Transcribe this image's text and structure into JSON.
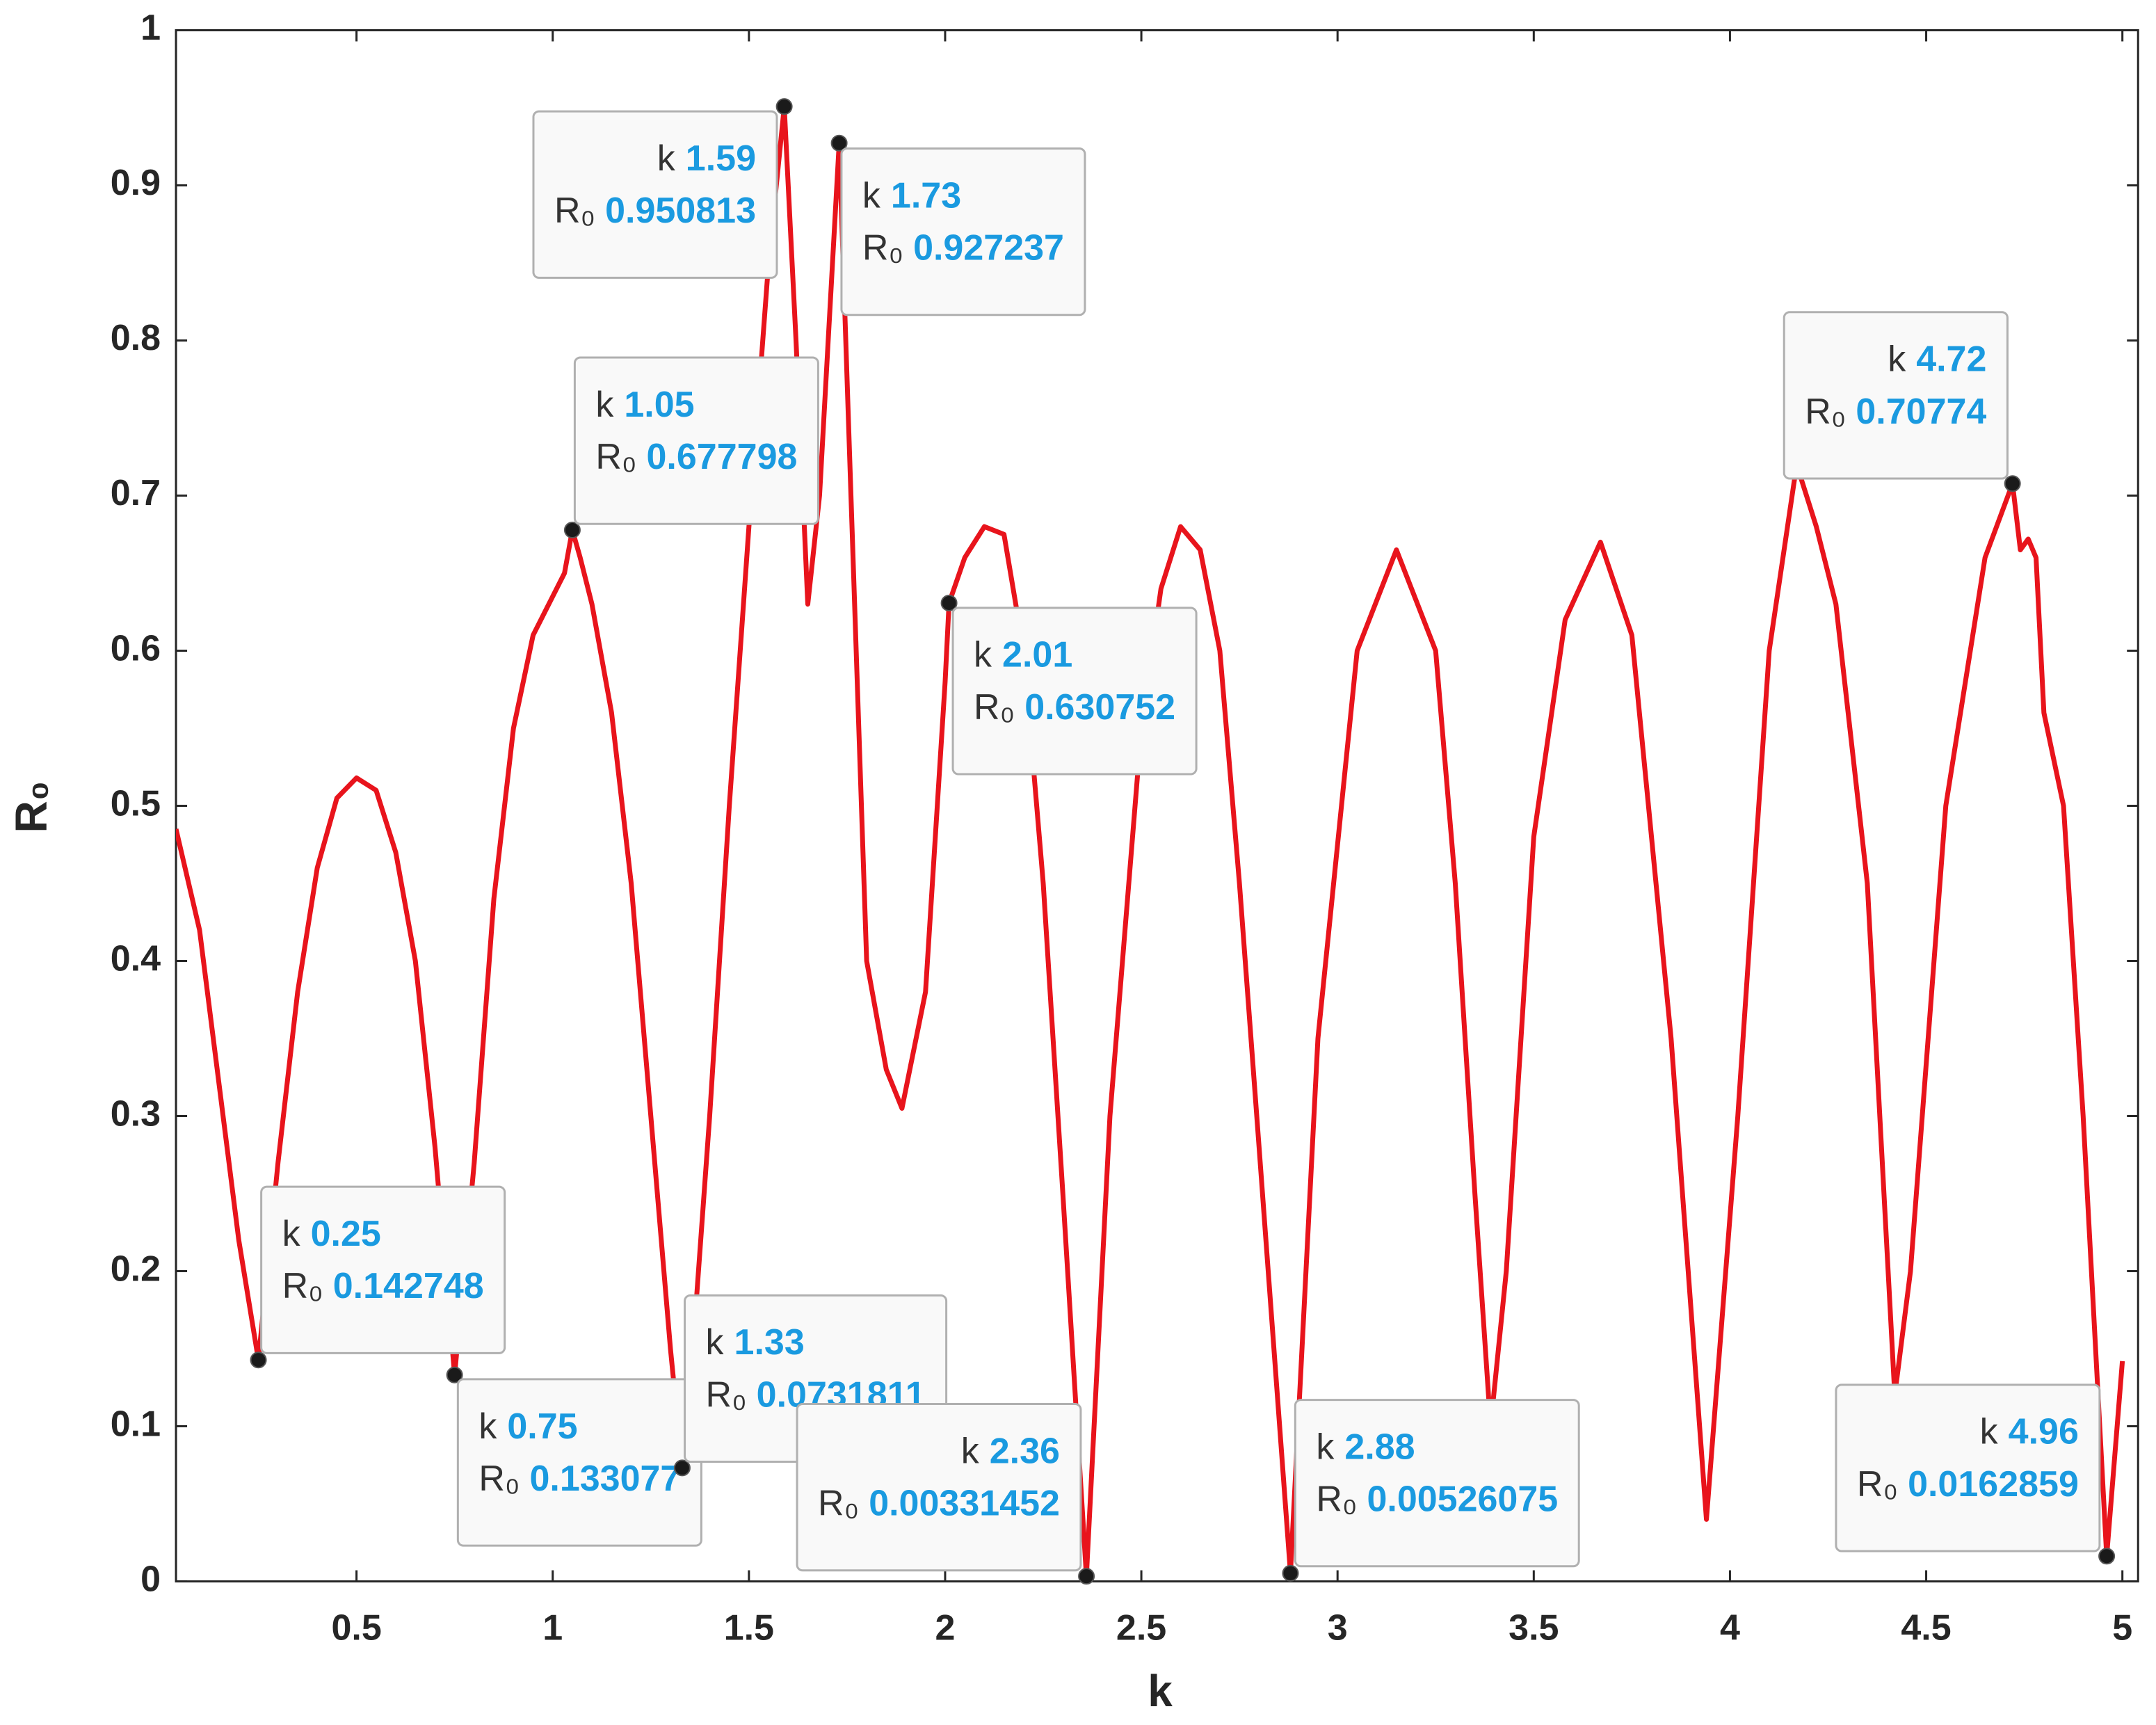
{
  "chart_data": {
    "type": "line",
    "xlabel": "k",
    "ylabel": "R₀",
    "xlim": [
      0.04,
      5.04
    ],
    "ylim": [
      0,
      1
    ],
    "xticks": [
      0.5,
      1,
      1.5,
      2,
      2.5,
      3,
      3.5,
      4,
      4.5,
      5
    ],
    "yticks": [
      0,
      0.1,
      0.2,
      0.3,
      0.4,
      0.5,
      0.6,
      0.7,
      0.8,
      0.9,
      1
    ],
    "color": "#e8141c",
    "x": [
      0.04,
      0.1,
      0.15,
      0.2,
      0.25,
      0.3,
      0.35,
      0.4,
      0.45,
      0.5,
      0.55,
      0.6,
      0.65,
      0.7,
      0.75,
      0.8,
      0.85,
      0.9,
      0.95,
      1.0,
      1.03,
      1.05,
      1.07,
      1.1,
      1.15,
      1.2,
      1.25,
      1.3,
      1.33,
      1.36,
      1.4,
      1.45,
      1.5,
      1.55,
      1.59,
      1.62,
      1.65,
      1.68,
      1.73,
      1.76,
      1.8,
      1.85,
      1.89,
      1.95,
      2.0,
      2.01,
      2.05,
      2.1,
      2.15,
      2.2,
      2.25,
      2.3,
      2.36,
      2.42,
      2.5,
      2.55,
      2.6,
      2.65,
      2.7,
      2.75,
      2.8,
      2.88,
      2.95,
      3.05,
      3.15,
      3.25,
      3.3,
      3.35,
      3.39,
      3.43,
      3.5,
      3.58,
      3.67,
      3.75,
      3.85,
      3.94,
      4.02,
      4.1,
      4.17,
      4.22,
      4.27,
      4.35,
      4.42,
      4.46,
      4.55,
      4.65,
      4.72,
      4.74,
      4.76,
      4.78,
      4.8,
      4.85,
      4.9,
      4.96,
      5.0
    ],
    "values": [
      0.485,
      0.42,
      0.32,
      0.22,
      0.142748,
      0.27,
      0.38,
      0.46,
      0.505,
      0.518,
      0.51,
      0.47,
      0.4,
      0.28,
      0.133077,
      0.27,
      0.44,
      0.55,
      0.61,
      0.635,
      0.65,
      0.677798,
      0.66,
      0.63,
      0.56,
      0.45,
      0.3,
      0.15,
      0.0731811,
      0.16,
      0.3,
      0.5,
      0.68,
      0.85,
      0.950813,
      0.8,
      0.63,
      0.7,
      0.927237,
      0.7,
      0.4,
      0.33,
      0.305,
      0.38,
      0.58,
      0.630752,
      0.66,
      0.68,
      0.675,
      0.6,
      0.45,
      0.25,
      0.00331452,
      0.3,
      0.55,
      0.64,
      0.68,
      0.665,
      0.6,
      0.45,
      0.28,
      0.00526075,
      0.35,
      0.6,
      0.665,
      0.6,
      0.45,
      0.25,
      0.1,
      0.2,
      0.48,
      0.62,
      0.67,
      0.61,
      0.35,
      0.04,
      0.3,
      0.6,
      0.72,
      0.68,
      0.63,
      0.45,
      0.12,
      0.2,
      0.5,
      0.66,
      0.70774,
      0.665,
      0.672,
      0.66,
      0.56,
      0.5,
      0.3,
      0.0162859,
      0.142
    ],
    "datatip_labels": {
      "x": "k",
      "y": "R₀"
    },
    "datatips": [
      {
        "x": 0.25,
        "y": 0.142748
      },
      {
        "x": 0.75,
        "y": 0.133077
      },
      {
        "x": 1.05,
        "y": 0.677798
      },
      {
        "x": 1.33,
        "y": 0.0731811
      },
      {
        "x": 1.59,
        "y": 0.950813
      },
      {
        "x": 1.73,
        "y": 0.927237
      },
      {
        "x": 2.01,
        "y": 0.630752
      },
      {
        "x": 2.36,
        "y": 0.00331452
      },
      {
        "x": 2.88,
        "y": 0.00526075
      },
      {
        "x": 4.72,
        "y": 0.70774
      },
      {
        "x": 4.96,
        "y": 0.0162859
      }
    ]
  }
}
